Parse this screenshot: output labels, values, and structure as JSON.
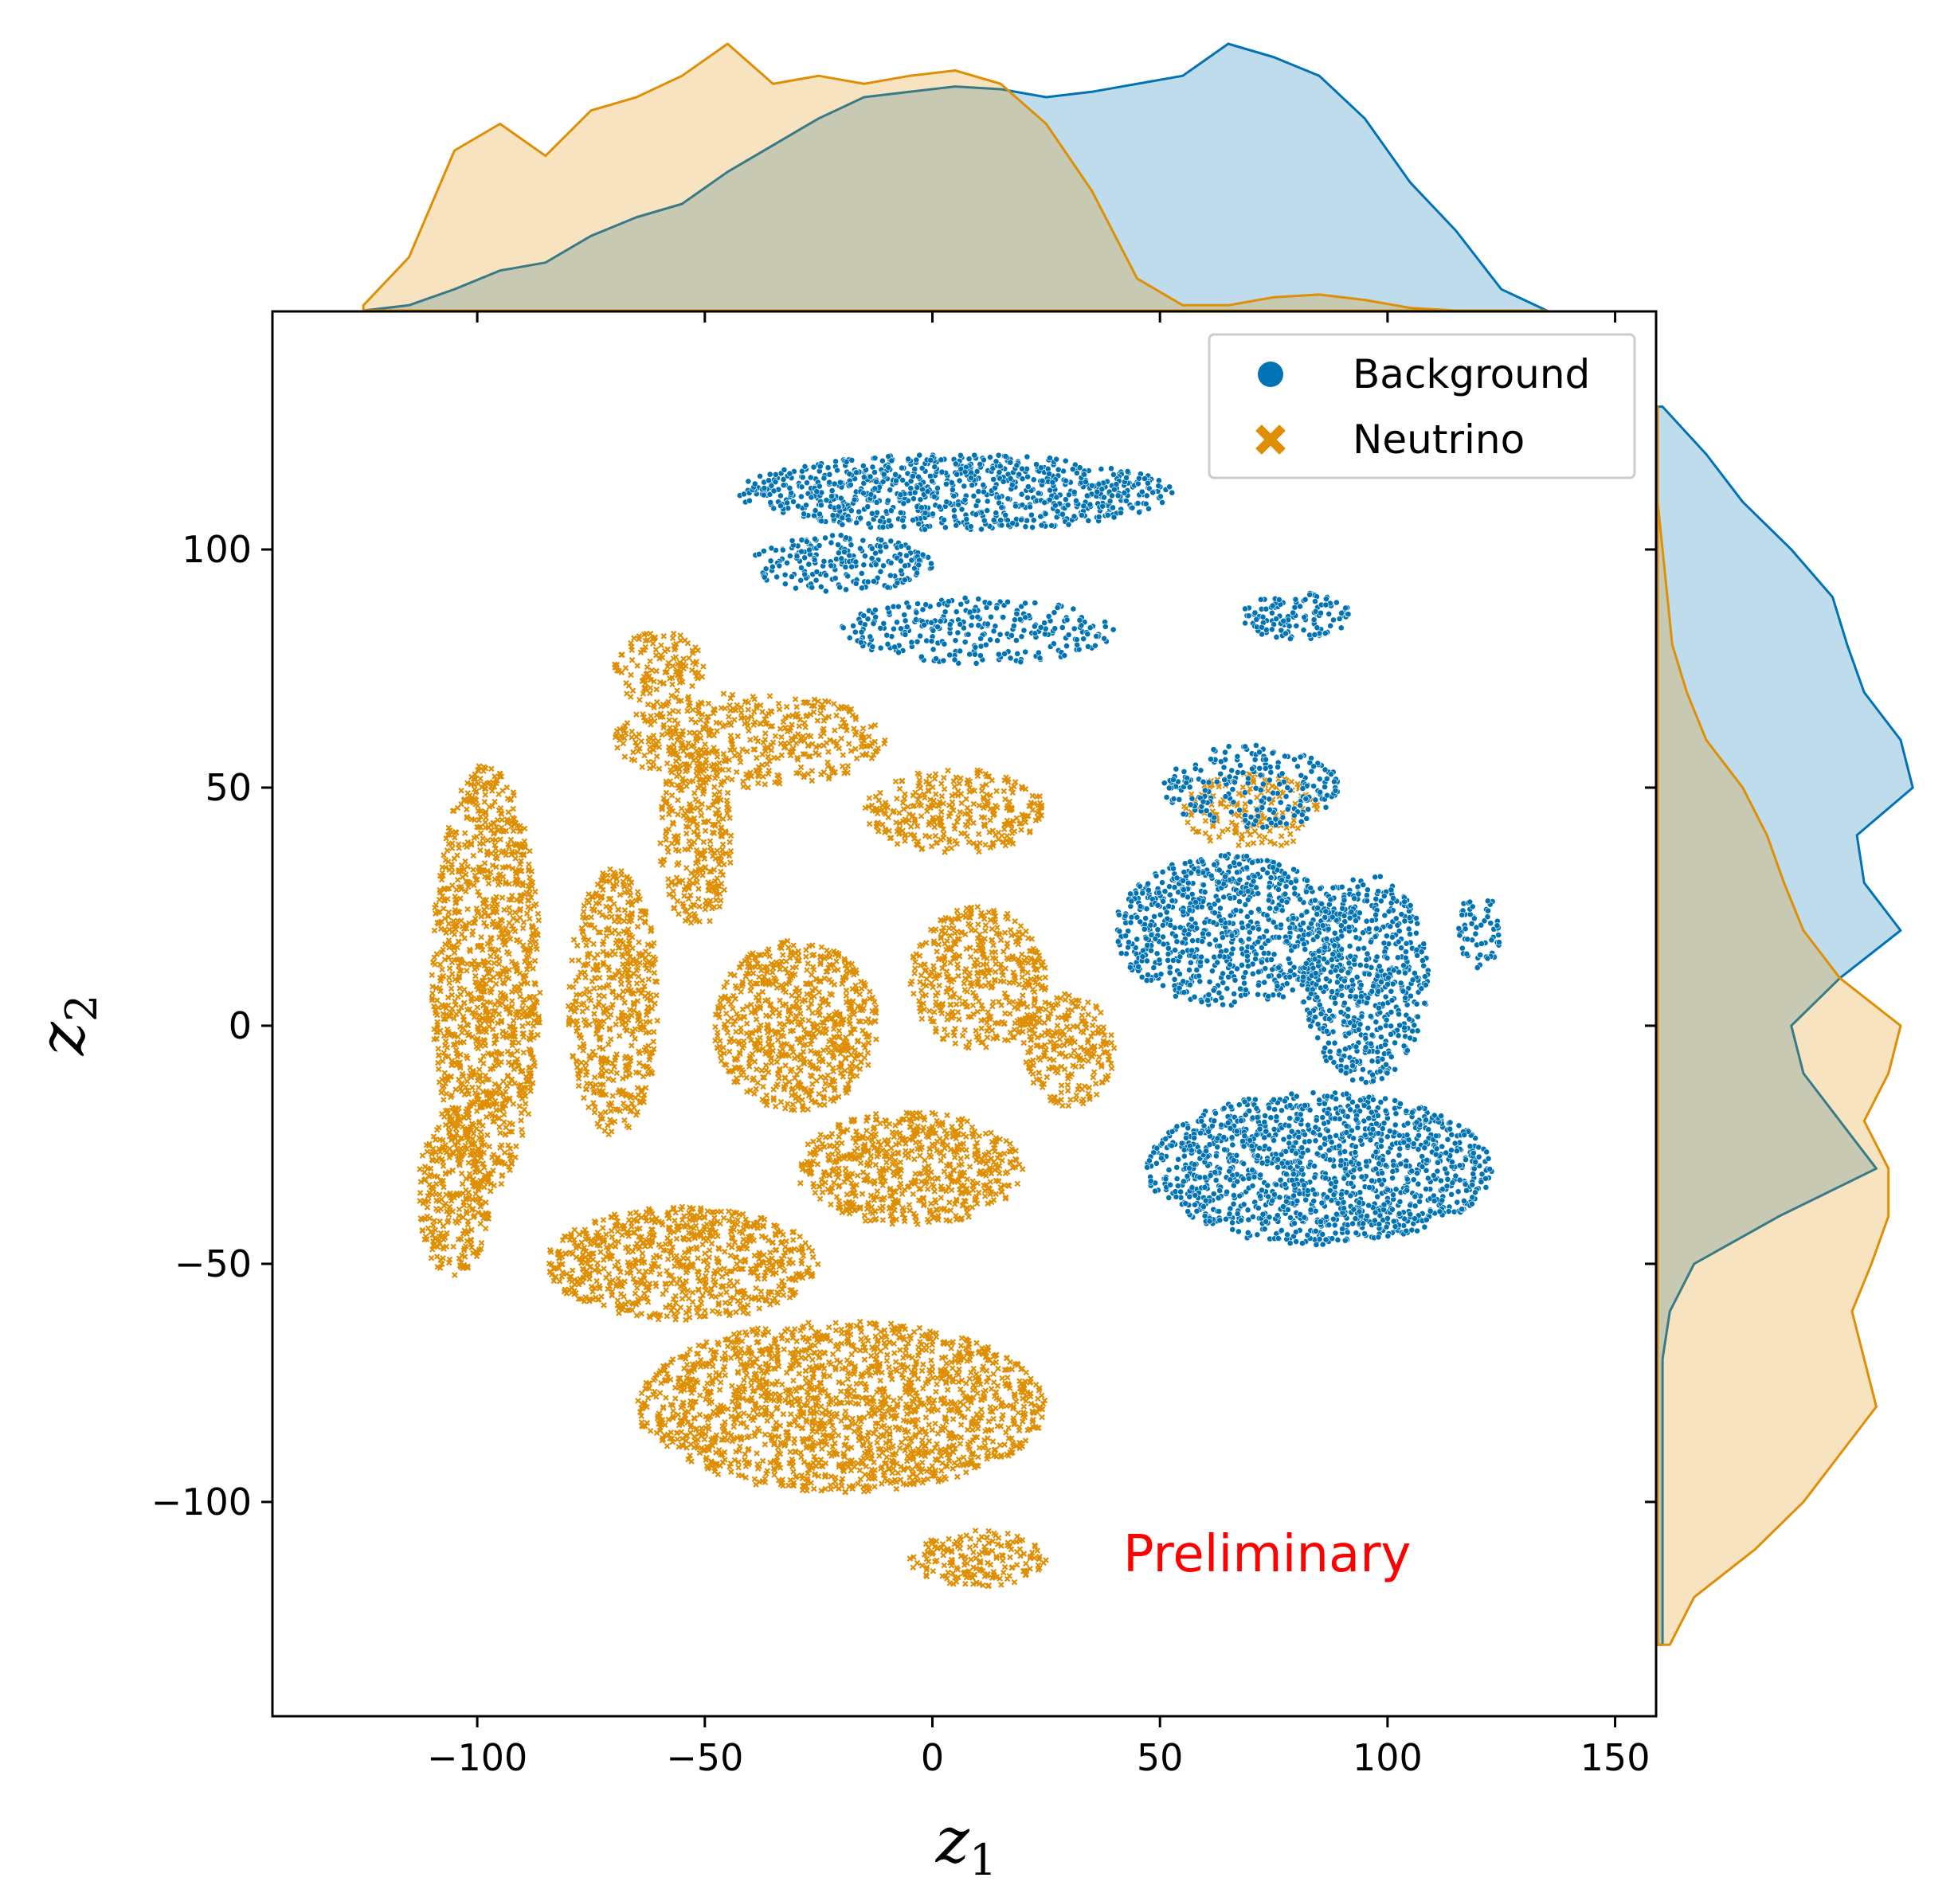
{
  "chart_data": {
    "type": "scatter",
    "subtype": "joint scatter with marginal KDE",
    "xlabel": "z",
    "xlabel_subscript": "1",
    "ylabel": "z",
    "ylabel_subscript": "2",
    "xlim": [
      -145,
      159
    ],
    "ylim": [
      -145,
      150
    ],
    "x_ticks": [
      -100,
      -50,
      0,
      50,
      100,
      150
    ],
    "x_tick_labels": [
      "−100",
      "−50",
      "0",
      "50",
      "100",
      "150"
    ],
    "y_ticks": [
      -100,
      -50,
      0,
      50,
      100
    ],
    "y_tick_labels": [
      "−100",
      "−50",
      "0",
      "50",
      "100"
    ],
    "grid": false,
    "legend_position": "top-right",
    "annotation": {
      "text": "Preliminary",
      "x": 43,
      "y": -112,
      "color": "#ff0000"
    },
    "series": [
      {
        "name": "Background",
        "marker": "circle",
        "color": "#0173b2",
        "clusters": [
          {
            "cx": 5,
            "cy": 112,
            "rx": 48,
            "ry": 8,
            "density": 1.0
          },
          {
            "cx": -20,
            "cy": 97,
            "rx": 20,
            "ry": 6,
            "density": 0.8
          },
          {
            "cx": 10,
            "cy": 83,
            "rx": 30,
            "ry": 7,
            "density": 0.6
          },
          {
            "cx": 80,
            "cy": 86,
            "rx": 12,
            "ry": 5,
            "density": 0.9
          },
          {
            "cx": 70,
            "cy": 50,
            "rx": 20,
            "ry": 9,
            "density": 0.6
          },
          {
            "cx": 65,
            "cy": 20,
            "rx": 25,
            "ry": 16,
            "density": 0.9
          },
          {
            "cx": 95,
            "cy": 10,
            "rx": 14,
            "ry": 22,
            "density": 0.9
          },
          {
            "cx": 85,
            "cy": -30,
            "rx": 38,
            "ry": 16,
            "density": 1.0
          },
          {
            "cx": 120,
            "cy": 20,
            "rx": 5,
            "ry": 8,
            "density": 0.7
          }
        ]
      },
      {
        "name": "Neutrino",
        "marker": "x",
        "color": "#de8f05",
        "clusters": [
          {
            "cx": -98,
            "cy": 10,
            "rx": 12,
            "ry": 45,
            "density": 1.0
          },
          {
            "cx": -105,
            "cy": -35,
            "rx": 8,
            "ry": 18,
            "density": 0.9
          },
          {
            "cx": -70,
            "cy": 5,
            "rx": 10,
            "ry": 28,
            "density": 0.9
          },
          {
            "cx": -52,
            "cy": 40,
            "rx": 8,
            "ry": 20,
            "density": 0.9
          },
          {
            "cx": -30,
            "cy": 0,
            "rx": 18,
            "ry": 18,
            "density": 1.0
          },
          {
            "cx": -5,
            "cy": -30,
            "rx": 25,
            "ry": 12,
            "density": 1.0
          },
          {
            "cx": 10,
            "cy": 10,
            "rx": 15,
            "ry": 15,
            "density": 0.9
          },
          {
            "cx": 30,
            "cy": -5,
            "rx": 10,
            "ry": 12,
            "density": 0.9
          },
          {
            "cx": 5,
            "cy": 45,
            "rx": 20,
            "ry": 9,
            "density": 0.8
          },
          {
            "cx": -55,
            "cy": -50,
            "rx": 30,
            "ry": 12,
            "density": 1.0
          },
          {
            "cx": -20,
            "cy": -80,
            "rx": 45,
            "ry": 18,
            "density": 1.0
          },
          {
            "cx": 10,
            "cy": -112,
            "rx": 15,
            "ry": 6,
            "density": 0.9
          },
          {
            "cx": -40,
            "cy": 60,
            "rx": 30,
            "ry": 10,
            "density": 0.7
          },
          {
            "cx": -60,
            "cy": 75,
            "rx": 10,
            "ry": 8,
            "density": 0.8
          },
          {
            "cx": 70,
            "cy": 45,
            "rx": 15,
            "ry": 8,
            "density": 0.6
          }
        ]
      }
    ],
    "marginal_x": {
      "x": [
        -125,
        -115,
        -105,
        -95,
        -85,
        -75,
        -65,
        -55,
        -45,
        -35,
        -25,
        -15,
        -5,
        5,
        15,
        25,
        35,
        45,
        55,
        65,
        75,
        85,
        95,
        105,
        115,
        125,
        135
      ],
      "Background": [
        0,
        0.02,
        0.08,
        0.15,
        0.18,
        0.28,
        0.35,
        0.4,
        0.52,
        0.62,
        0.72,
        0.8,
        0.82,
        0.84,
        0.83,
        0.8,
        0.82,
        0.85,
        0.88,
        1.0,
        0.95,
        0.88,
        0.72,
        0.48,
        0.3,
        0.08,
        0
      ],
      "Neutrino": [
        0.02,
        0.2,
        0.6,
        0.7,
        0.58,
        0.75,
        0.8,
        0.88,
        1.0,
        0.85,
        0.88,
        0.85,
        0.88,
        0.9,
        0.85,
        0.7,
        0.45,
        0.12,
        0.02,
        0.02,
        0.05,
        0.06,
        0.04,
        0.01,
        0,
        0,
        0
      ]
    },
    "marginal_y": {
      "y": [
        -130,
        -120,
        -110,
        -100,
        -90,
        -80,
        -70,
        -60,
        -50,
        -40,
        -30,
        -20,
        -10,
        0,
        10,
        20,
        30,
        40,
        50,
        60,
        70,
        80,
        90,
        100,
        110,
        120,
        130
      ],
      "Background": [
        0.02,
        0.02,
        0.02,
        0.02,
        0.02,
        0.02,
        0.02,
        0.05,
        0.15,
        0.5,
        0.9,
        0.75,
        0.6,
        0.55,
        0.75,
        1.0,
        0.85,
        0.82,
        1.05,
        1.0,
        0.85,
        0.78,
        0.72,
        0.55,
        0.35,
        0.2,
        0.02
      ],
      "Neutrino": [
        0.05,
        0.15,
        0.4,
        0.6,
        0.75,
        0.9,
        0.85,
        0.8,
        0.88,
        0.95,
        0.95,
        0.85,
        0.95,
        1.0,
        0.75,
        0.6,
        0.52,
        0.45,
        0.35,
        0.2,
        0.12,
        0.06,
        0.04,
        0.02,
        0,
        0,
        0
      ]
    }
  }
}
